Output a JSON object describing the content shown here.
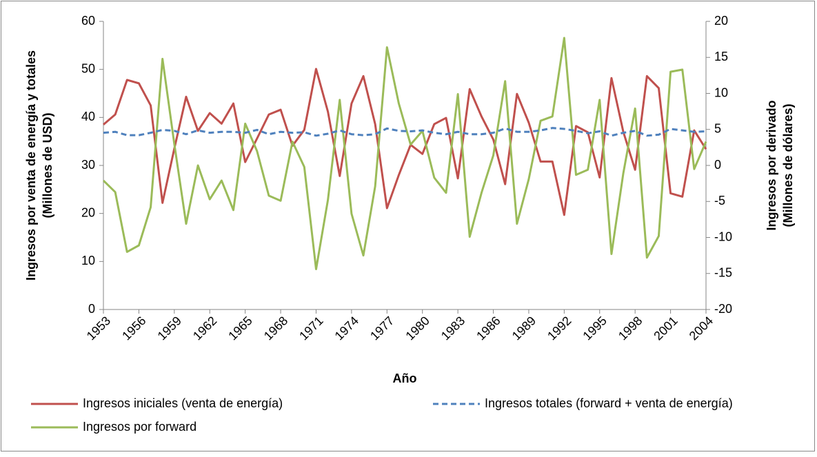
{
  "chart_data": {
    "type": "line",
    "xlabel": "Año",
    "ylabel": [
      "Ingresos por venta de energía y totales",
      "(Millones de USD)"
    ],
    "y2label": [
      "Ingresos por derivado",
      "(Millones de dólares)"
    ],
    "x": [
      1953,
      1954,
      1955,
      1956,
      1957,
      1958,
      1959,
      1960,
      1961,
      1962,
      1963,
      1964,
      1965,
      1966,
      1967,
      1968,
      1969,
      1970,
      1971,
      1972,
      1973,
      1974,
      1975,
      1976,
      1977,
      1978,
      1979,
      1980,
      1981,
      1982,
      1983,
      1984,
      1985,
      1986,
      1987,
      1988,
      1989,
      1990,
      1991,
      1992,
      1993,
      1994,
      1995,
      1996,
      1997,
      1998,
      1999,
      2000,
      2001,
      2002,
      2003,
      2004
    ],
    "xlim": [
      1953,
      2004
    ],
    "xticks": [
      1953,
      1956,
      1959,
      1962,
      1965,
      1968,
      1971,
      1974,
      1977,
      1980,
      1983,
      1986,
      1989,
      1992,
      1995,
      1998,
      2001,
      2004
    ],
    "ylim": [
      0,
      60
    ],
    "yticks": [
      0,
      10,
      20,
      30,
      40,
      50,
      60
    ],
    "y2lim": [
      -20,
      20
    ],
    "y2ticks": [
      -20,
      -15,
      -10,
      -5,
      0,
      5,
      10,
      15,
      20
    ],
    "grid": false,
    "legend": "bottom",
    "series": [
      {
        "name": "Ingresos iniciales (venta de energía)",
        "color": "#c0504d",
        "style": "solid",
        "values": [
          38.5,
          40.6,
          47.8,
          47.1,
          42.5,
          22.2,
          33.5,
          44.3,
          37.2,
          40.9,
          38.7,
          42.9,
          30.7,
          35.6,
          40.6,
          41.6,
          34.1,
          37.4,
          50.1,
          41.2,
          27.8,
          42.9,
          48.6,
          38.6,
          21.1,
          28,
          34.3,
          32.4,
          38.6,
          39.9,
          27.3,
          45.9,
          40.2,
          35.4,
          26.1,
          44.9,
          38.9,
          30.8,
          30.8,
          19.7,
          38.2,
          36.9,
          27.5,
          48.2,
          37,
          29.1,
          48.6,
          46.1,
          24.2,
          23.5,
          37.3,
          33.4
        ]
      },
      {
        "name": "Ingresos totales (forward + venta de energía)",
        "color": "#4f81bd",
        "style": "dashed",
        "values": [
          36.8,
          37,
          36.3,
          36.3,
          36.8,
          37.4,
          37.2,
          36.5,
          37.3,
          36.8,
          37,
          37,
          36.8,
          37.4,
          36.5,
          37,
          36.8,
          36.9,
          36.2,
          36.6,
          37.3,
          36.5,
          36.3,
          36.5,
          37.7,
          37.2,
          37.1,
          37.3,
          36.8,
          36.5,
          37,
          36.5,
          36.5,
          36.8,
          37.7,
          37,
          37,
          37.3,
          37.8,
          37.6,
          37.2,
          36.7,
          37.1,
          36.2,
          36.8,
          37.2,
          36.2,
          36.4,
          37.6,
          37.3,
          37,
          37.1
        ]
      },
      {
        "name": "Ingresos por forward",
        "color": "#9bbb59",
        "style": "solid",
        "axis": "y2",
        "values": [
          -2.1,
          -3.7,
          -12,
          -11.1,
          -5.8,
          14.8,
          3,
          -8.1,
          0,
          -4.7,
          -2.1,
          -6.2,
          5.8,
          2,
          -4.2,
          -4.9,
          3.3,
          -0.2,
          -14.4,
          -4.8,
          9.1,
          -6.7,
          -12.5,
          -2.9,
          16.4,
          8.6,
          2.9,
          4.8,
          -1.7,
          -3.8,
          9.9,
          -9.9,
          -3.8,
          1.4,
          11.7,
          -8.1,
          -1.9,
          6.2,
          6.8,
          17.7,
          -1.3,
          -0.6,
          9.1,
          -12.3,
          -1.1,
          7.9,
          -12.8,
          -9.8,
          13,
          13.3,
          -0.5,
          3.3
        ]
      }
    ]
  }
}
